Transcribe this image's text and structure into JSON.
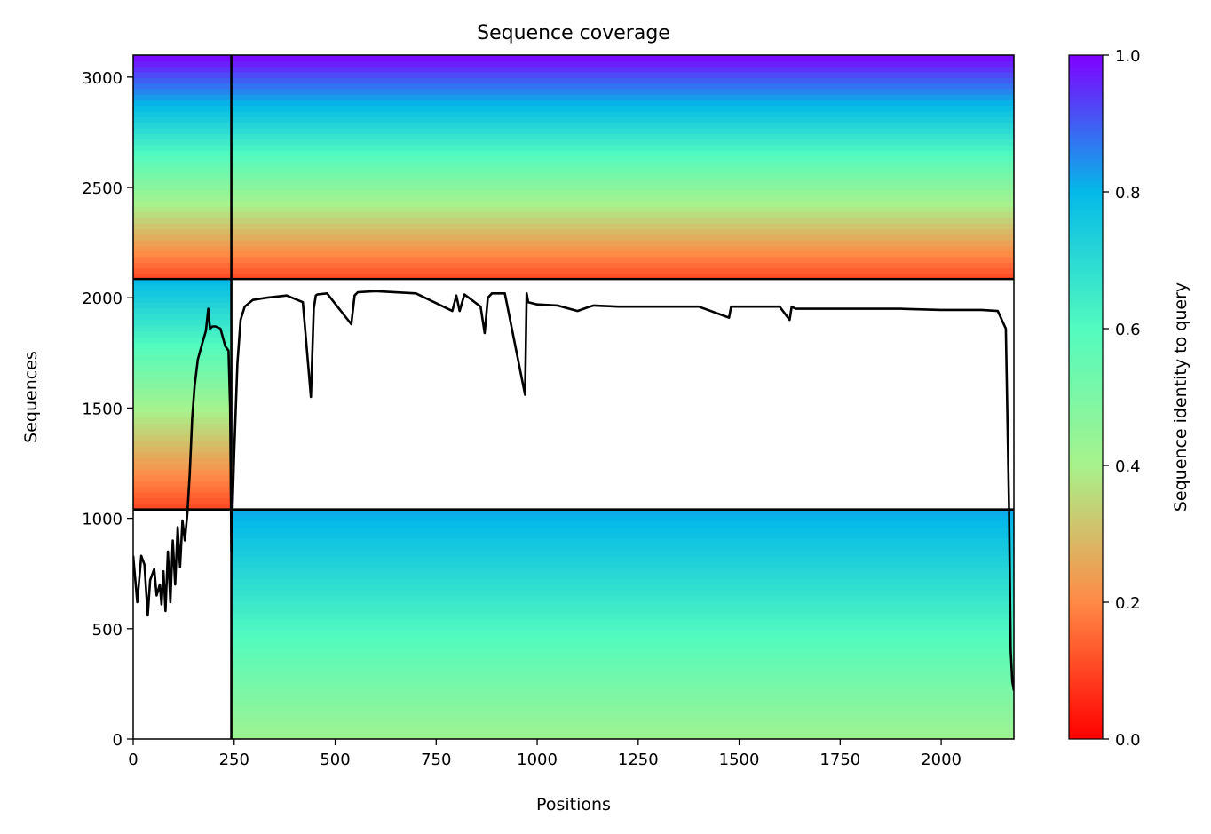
{
  "chart_data": {
    "type": "heatmap",
    "title": "Sequence coverage",
    "xlabel": "Positions",
    "ylabel": "Sequences",
    "xlim": [
      0,
      2180
    ],
    "ylim": [
      0,
      3100
    ],
    "xticks": [
      0,
      250,
      500,
      750,
      1000,
      1250,
      1500,
      1750,
      2000
    ],
    "yticks": [
      0,
      500,
      1000,
      1500,
      2000,
      2500,
      3000
    ],
    "grid": false,
    "colorbar": {
      "label": "Sequence identity to query",
      "range": [
        0,
        1
      ],
      "ticks": [
        0.0,
        0.2,
        0.4,
        0.6,
        0.8,
        1.0
      ],
      "tick_labels": [
        "0.0",
        "0.2",
        "0.4",
        "0.6",
        "0.8",
        "1.0"
      ],
      "colormap": "rainbow_r"
    },
    "chain_boundaries_x": [
      243
    ],
    "chain_boundaries_y": [
      1040,
      2085
    ],
    "blocks": [
      {
        "name": "block-1",
        "x0": 243,
        "x1": 2180,
        "y0": 0,
        "y1": 1040,
        "identity_bottom": 0.42,
        "identity_top": 0.82
      },
      {
        "name": "block-2",
        "x0": 0,
        "x1": 243,
        "y0": 1040,
        "y1": 2085,
        "identity_bottom": 0.1,
        "identity_top": 0.8
      },
      {
        "name": "block-3",
        "x0": 0,
        "x1": 2180,
        "y0": 2085,
        "y1": 3100,
        "identity_bottom": 0.1,
        "identity_top": 1.0
      }
    ],
    "coverage_line": {
      "x": [
        0,
        10,
        20,
        28,
        36,
        42,
        52,
        58,
        66,
        70,
        75,
        80,
        86,
        92,
        98,
        104,
        110,
        116,
        122,
        128,
        134,
        140,
        146,
        152,
        160,
        172,
        180,
        186,
        190,
        196,
        204,
        216,
        228,
        236,
        240,
        243,
        245,
        250,
        258,
        266,
        276,
        296,
        330,
        380,
        420,
        440,
        447,
        452,
        456,
        480,
        540,
        548,
        556,
        600,
        700,
        790,
        800,
        808,
        820,
        860,
        870,
        878,
        888,
        920,
        970,
        974,
        978,
        1000,
        1050,
        1100,
        1130,
        1140,
        1200,
        1300,
        1400,
        1475,
        1480,
        1490,
        1550,
        1600,
        1625,
        1630,
        1640,
        1700,
        1800,
        1900,
        2000,
        2100,
        2140,
        2160,
        2168,
        2172,
        2176,
        2180
      ],
      "y": [
        830,
        620,
        830,
        790,
        560,
        720,
        770,
        650,
        700,
        610,
        760,
        580,
        850,
        620,
        900,
        700,
        960,
        780,
        990,
        900,
        1020,
        1200,
        1450,
        1600,
        1720,
        1800,
        1850,
        1950,
        1860,
        1870,
        1870,
        1860,
        1780,
        1760,
        1500,
        850,
        1000,
        1300,
        1700,
        1900,
        1960,
        1990,
        2000,
        2010,
        1980,
        1550,
        1950,
        2010,
        2015,
        2020,
        1880,
        2010,
        2025,
        2030,
        2020,
        1940,
        2010,
        1940,
        2015,
        1960,
        1840,
        2000,
        2020,
        2020,
        1560,
        2020,
        1980,
        1970,
        1965,
        1940,
        1960,
        1965,
        1960,
        1960,
        1960,
        1910,
        1960,
        1960,
        1960,
        1960,
        1900,
        1960,
        1950,
        1950,
        1950,
        1950,
        1945,
        1945,
        1940,
        1860,
        1050,
        400,
        260,
        220
      ]
    }
  }
}
